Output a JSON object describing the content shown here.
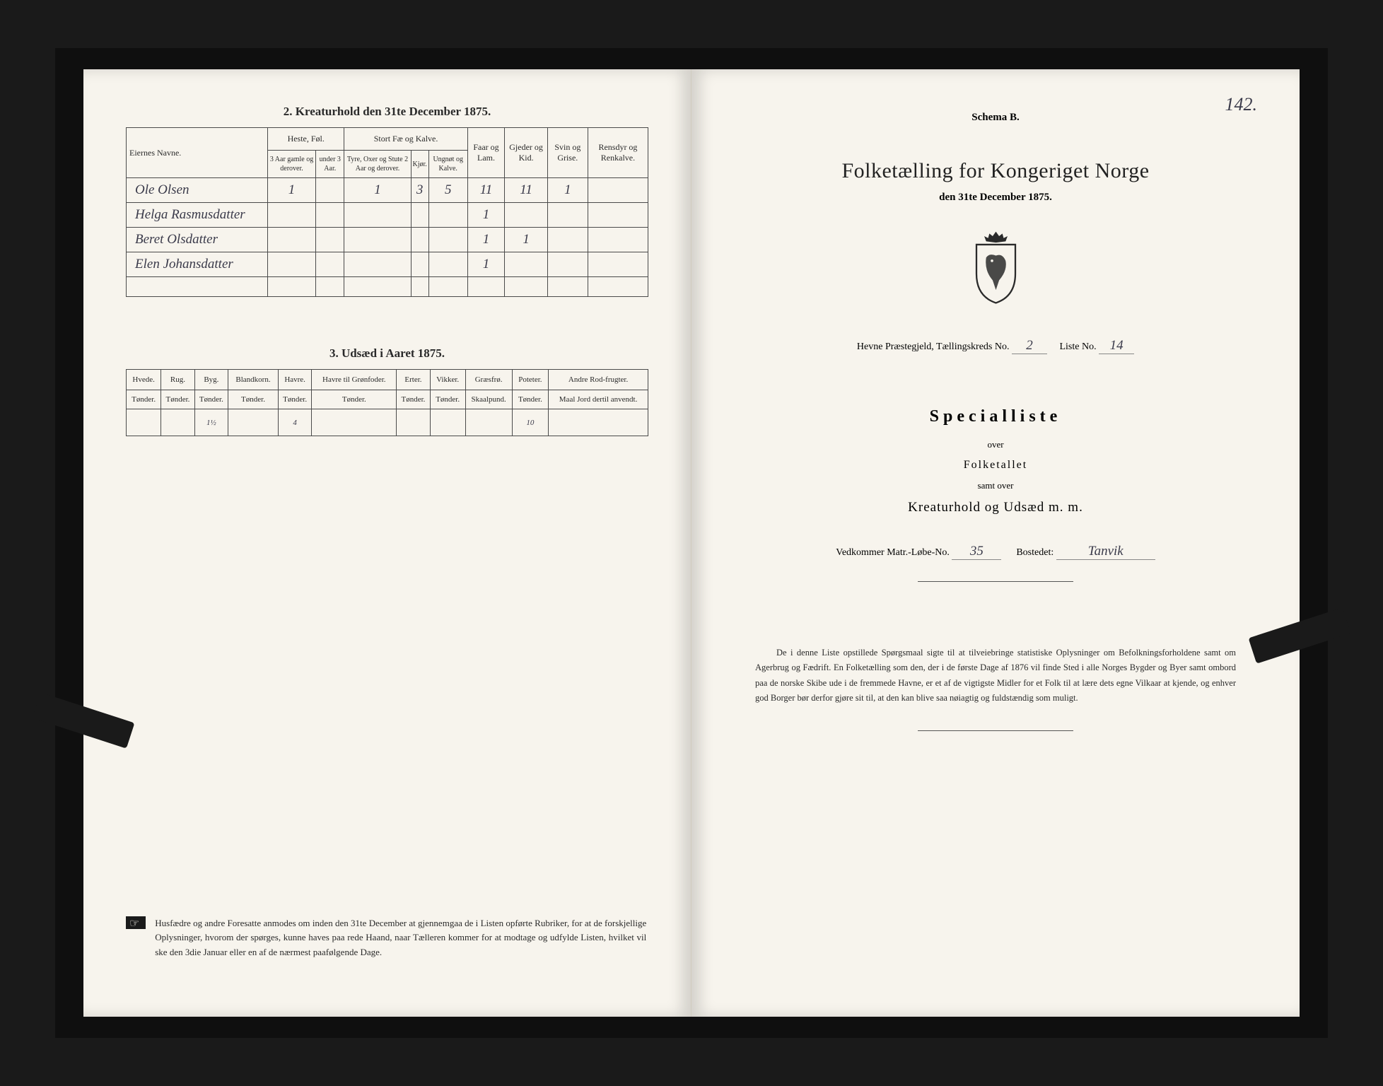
{
  "left": {
    "section2_title": "2. Kreaturhold den 31te December 1875.",
    "table2": {
      "group_headers": {
        "names": "Eiernes Navne.",
        "heste": "Heste, Føl.",
        "stort": "Stort Fæ og Kalve.",
        "faar": "Faar og Lam.",
        "gjeder": "Gjeder og Kid.",
        "svin": "Svin og Grise.",
        "rensdyr": "Rensdyr og Renkalve."
      },
      "sub_headers": {
        "h1": "3 Aar gamle og derover.",
        "h2": "under 3 Aar.",
        "s1": "Tyre, Oxer og Stute 2 Aar og derover.",
        "s2": "Kjør.",
        "s3": "Ungnøt og Kalve."
      },
      "rows": [
        {
          "name": "Ole Olsen",
          "cells": [
            "1",
            "",
            "1",
            "3",
            "5",
            "11",
            "11",
            "1",
            ""
          ]
        },
        {
          "name": "Helga Rasmusdatter",
          "cells": [
            "",
            "",
            "",
            "",
            "",
            "1",
            "",
            "",
            ""
          ]
        },
        {
          "name": "Beret Olsdatter",
          "cells": [
            "",
            "",
            "",
            "",
            "",
            "1",
            "1",
            "",
            ""
          ]
        },
        {
          "name": "Elen Johansdatter",
          "cells": [
            "",
            "",
            "",
            "",
            "",
            "1",
            "",
            "",
            ""
          ]
        },
        {
          "name": "",
          "cells": [
            "",
            "",
            "",
            "",
            "",
            "",
            "",
            "",
            ""
          ]
        }
      ]
    },
    "section3_title": "3. Udsæd i Aaret 1875.",
    "table3": {
      "headers": [
        "Hvede.",
        "Rug.",
        "Byg.",
        "Blandkorn.",
        "Havre.",
        "Havre til Grønfoder.",
        "Erter.",
        "Vikker.",
        "Græsfrø.",
        "Poteter.",
        "Andre Rod-frugter."
      ],
      "units": [
        "Tønder.",
        "Tønder.",
        "Tønder.",
        "Tønder.",
        "Tønder.",
        "Tønder.",
        "Tønder.",
        "Tønder.",
        "Skaalpund.",
        "Tønder.",
        "Maal Jord dertil anvendt."
      ],
      "row": [
        "",
        "",
        "1½",
        "",
        "4",
        "",
        "",
        "",
        "",
        "10",
        ""
      ]
    },
    "footnote": "Husfædre og andre Foresatte anmodes om inden den 31te December at gjennemgaa de i Listen opførte Rubriker, for at de forskjellige Oplysninger, hvorom der spørges, kunne haves paa rede Haand, naar Tælleren kommer for at modtage og udfylde Listen, hvilket vil ske den 3die Januar eller en af de nærmest paafølgende Dage."
  },
  "right": {
    "page_num": "142.",
    "schema": "Schema B.",
    "title": "Folketælling for Kongeriget Norge",
    "subtitle": "den 31te December 1875.",
    "line_row": {
      "a": "Hevne",
      "b": "Præstegjeld, Tællingskreds No.",
      "c": "2",
      "d": "Liste No.",
      "e": "14"
    },
    "specialliste": "Specialliste",
    "over": "over",
    "folketallet": "Folketallet",
    "samt_over": "samt over",
    "kreaturhold": "Kreaturhold og Udsæd m. m.",
    "matr": {
      "a": "Vedkommer Matr.-Løbe-No.",
      "v1": "35",
      "b": "Bostedet:",
      "v2": "Tanvik"
    },
    "footnote": "De i denne Liste opstillede Spørgsmaal sigte til at tilveiebringe statistiske Oplysninger om Befolkningsforholdene samt om Agerbrug og Fædrift. En Folketælling som den, der i de første Dage af 1876 vil finde Sted i alle Norges Bygder og Byer samt ombord paa de norske Skibe ude i de fremmede Havne, er et af de vigtigste Midler for et Folk til at lære dets egne Vilkaar at kjende, og enhver god Borger bør derfor gjøre sit til, at den kan blive saa nøiagtig og fuldstændig som muligt."
  }
}
